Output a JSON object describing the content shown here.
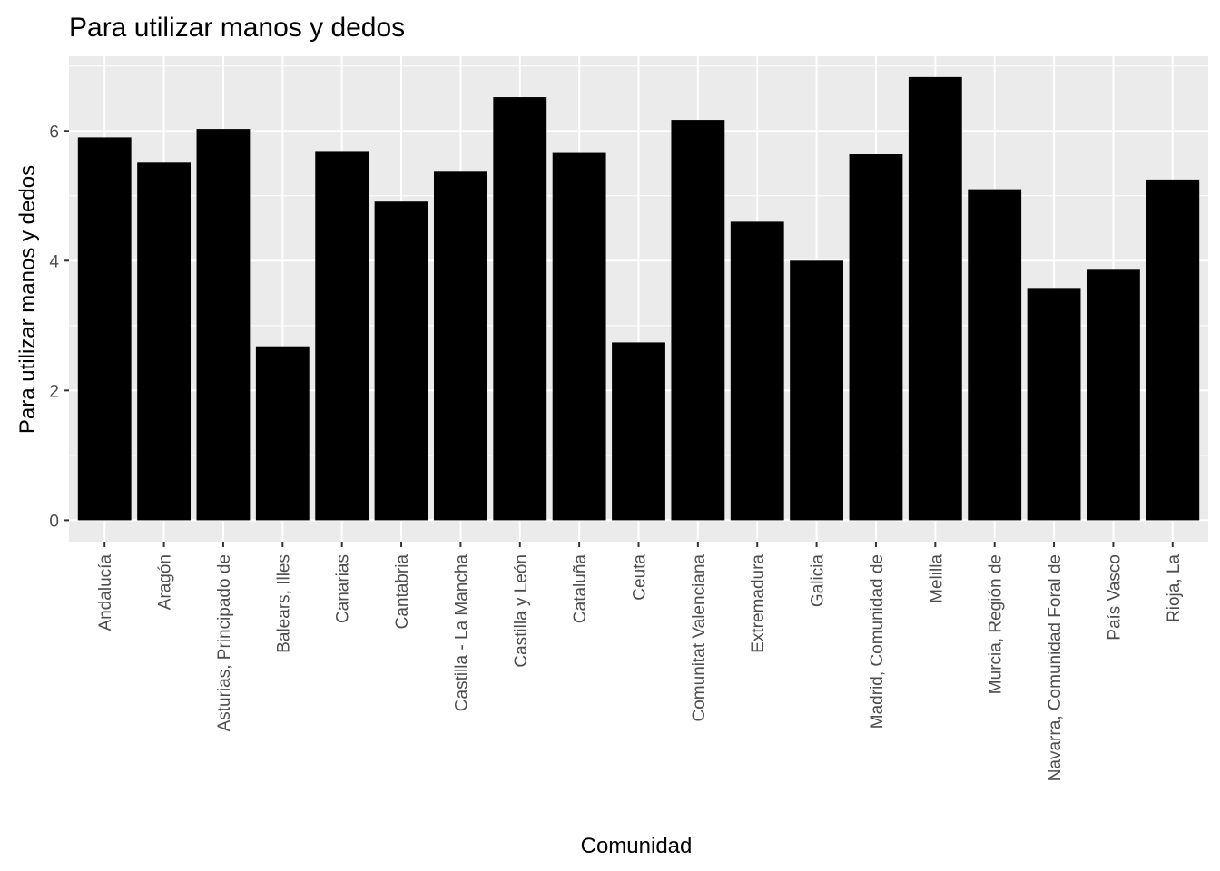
{
  "chart_data": {
    "type": "bar",
    "title": "Para utilizar manos y dedos",
    "xlabel": "Comunidad",
    "ylabel": "Para utilizar manos y dedos",
    "ylim": [
      -0.33,
      7.15
    ],
    "yticks": [
      0,
      2,
      4,
      6
    ],
    "grid": true,
    "bar_color": "#000000",
    "panel_background": "#ebebeb",
    "grid_color": "#ffffff",
    "categories": [
      "Andalucía",
      "Aragón",
      "Asturias, Principado de",
      "Balears, Illes",
      "Canarias",
      "Cantabria",
      "Castilla - La Mancha",
      "Castilla y León",
      "Cataluña",
      "Ceuta",
      "Comunitat Valenciana",
      "Extremadura",
      "Galicia",
      "Madrid, Comunidad de",
      "Melilla",
      "Murcia, Región de",
      "Navarra, Comunidad Foral de",
      "País Vasco",
      "Rioja, La"
    ],
    "values": [
      5.9,
      5.51,
      6.03,
      2.68,
      5.69,
      4.91,
      5.37,
      6.52,
      5.66,
      2.74,
      6.17,
      4.6,
      4.0,
      5.64,
      6.83,
      5.1,
      3.58,
      3.86,
      5.25
    ]
  }
}
